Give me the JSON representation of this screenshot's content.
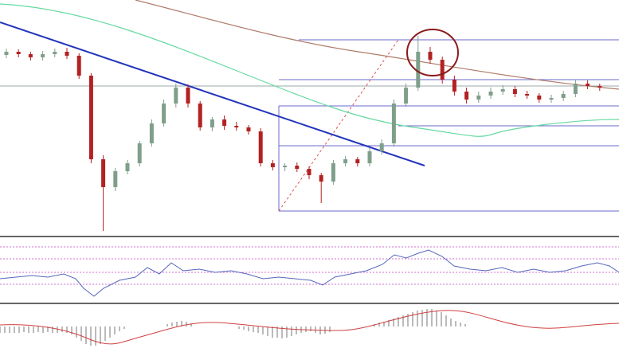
{
  "chart_data": {
    "type": "candlestick",
    "ylim": [
      0,
      295
    ],
    "bull_color": "#7f9f8a",
    "bear_color": "#b22222",
    "open": [
      226,
      230,
      227,
      223,
      227,
      230,
      225,
      200,
      95,
      60,
      80,
      90,
      115,
      140,
      165,
      185,
      165,
      135,
      145,
      137,
      135,
      130,
      90,
      85,
      87,
      83,
      75,
      67,
      90,
      95,
      90,
      105,
      115,
      165,
      185,
      230,
      220,
      195,
      180,
      170,
      175,
      180,
      183,
      177,
      175,
      170,
      172,
      177,
      190,
      187
    ],
    "high": [
      234,
      233,
      230,
      231,
      234,
      235,
      228,
      203,
      100,
      84,
      94,
      118,
      145,
      170,
      190,
      189,
      168,
      148,
      150,
      142,
      138,
      134,
      94,
      90,
      91,
      86,
      78,
      94,
      99,
      98,
      109,
      120,
      170,
      190,
      250,
      236,
      224,
      200,
      185,
      180,
      185,
      188,
      187,
      181,
      178,
      176,
      181,
      195,
      194,
      190
    ],
    "low": [
      222,
      223,
      219,
      219,
      223,
      221,
      196,
      90,
      5,
      55,
      76,
      86,
      111,
      136,
      160,
      160,
      131,
      130,
      132,
      131,
      126,
      86,
      81,
      80,
      79,
      70,
      40,
      63,
      86,
      86,
      86,
      101,
      111,
      161,
      181,
      215,
      190,
      175,
      165,
      166,
      171,
      176,
      173,
      171,
      166,
      166,
      168,
      173,
      183,
      181
    ],
    "close": [
      230,
      227,
      223,
      227,
      230,
      225,
      200,
      95,
      60,
      80,
      90,
      115,
      140,
      165,
      185,
      165,
      135,
      145,
      137,
      135,
      130,
      90,
      85,
      87,
      83,
      75,
      67,
      90,
      95,
      90,
      105,
      115,
      165,
      185,
      230,
      220,
      195,
      180,
      170,
      175,
      180,
      183,
      177,
      175,
      170,
      172,
      177,
      190,
      187,
      185
    ]
  }
}
